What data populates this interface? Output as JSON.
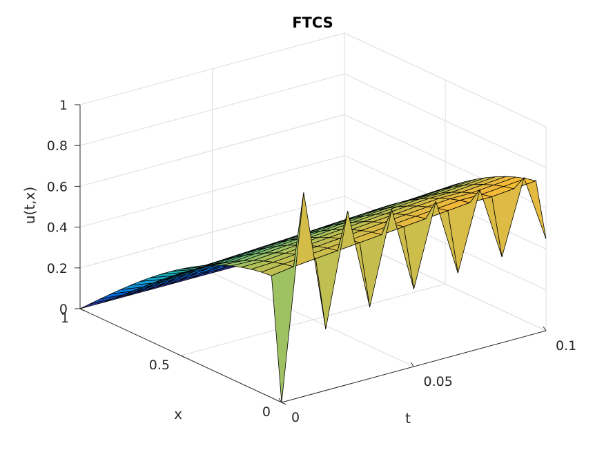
{
  "chart_data": {
    "type": "surface",
    "title": "FTCS",
    "xlabel": "t",
    "ylabel": "x",
    "zlabel": "u(t,x)",
    "t_ticks": [
      "0",
      "0.05",
      "0.1"
    ],
    "x_ticks": [
      "0",
      "0.5",
      "1"
    ],
    "z_ticks": [
      "0",
      "0.2",
      "0.4",
      "0.6",
      "0.8",
      "1"
    ],
    "tlim": [
      0,
      0.1
    ],
    "xlim": [
      0,
      1
    ],
    "zlim": [
      0,
      1
    ],
    "grid": true,
    "colormap": "parula",
    "edge_color": "#000000",
    "description_of_data": "u(t,x) on a grid of 21 x-points (0 to 1) and 13 t-points (0 to 0.1); at each t the profile alternates between a smooth sine-like hump and a spiky zigzag",
    "t": [
      0,
      0.00833,
      0.01667,
      0.025,
      0.03333,
      0.04167,
      0.05,
      0.05833,
      0.06667,
      0.075,
      0.08333,
      0.09167,
      0.1
    ],
    "x": [
      0,
      0.05,
      0.1,
      0.15,
      0.2,
      0.25,
      0.3,
      0.35,
      0.4,
      0.45,
      0.5,
      0.55,
      0.6,
      0.65,
      0.7,
      0.75,
      0.8,
      0.85,
      0.9,
      0.95,
      1
    ],
    "u_at_x0": [
      0,
      1,
      0.3,
      0.85,
      0.35,
      0.8,
      0.38,
      0.78,
      0.4,
      0.78,
      0.42,
      0.78,
      0.45
    ],
    "u_peak_at_x1_over_t": [
      0.6,
      0.62,
      0.63,
      0.64,
      0.65,
      0.66,
      0.67,
      0.68,
      0.69,
      0.7,
      0.7,
      0.71,
      0.72
    ]
  }
}
